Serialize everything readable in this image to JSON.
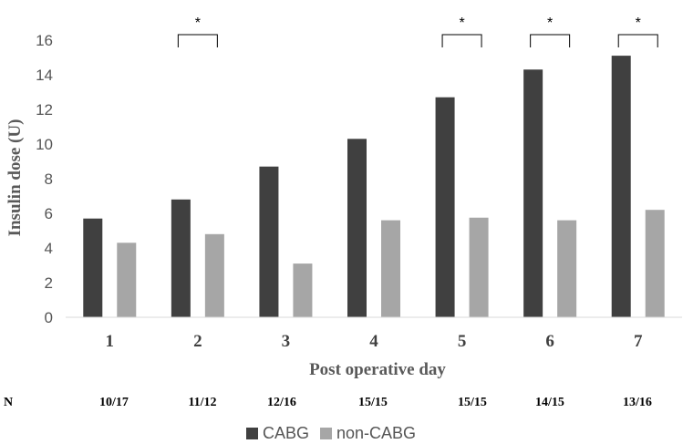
{
  "chart_data": {
    "type": "bar",
    "title": "",
    "xlabel": "Post operative day",
    "ylabel": "Insulin  dose (U)",
    "ylim": [
      0,
      16
    ],
    "yticks": [
      0,
      2,
      4,
      6,
      8,
      10,
      12,
      14,
      16
    ],
    "categories": [
      "1",
      "2",
      "3",
      "4",
      "5",
      "6",
      "7"
    ],
    "series": [
      {
        "name": "CABG",
        "color": "#404040",
        "values": [
          5.7,
          6.8,
          8.7,
          10.3,
          12.7,
          14.3,
          15.1
        ]
      },
      {
        "name": "non-CABG",
        "color": "#a6a6a6",
        "values": [
          4.3,
          4.8,
          3.1,
          5.6,
          5.75,
          5.6,
          6.2
        ]
      }
    ],
    "significance": [
      "",
      "*",
      "",
      "",
      "*",
      "*",
      "*"
    ],
    "n_label": "N",
    "n_values": [
      "10/17",
      "11/12",
      "12/16",
      "15/15",
      "15/15",
      "14/15",
      "13/16"
    ],
    "legend_position": "bottom"
  }
}
